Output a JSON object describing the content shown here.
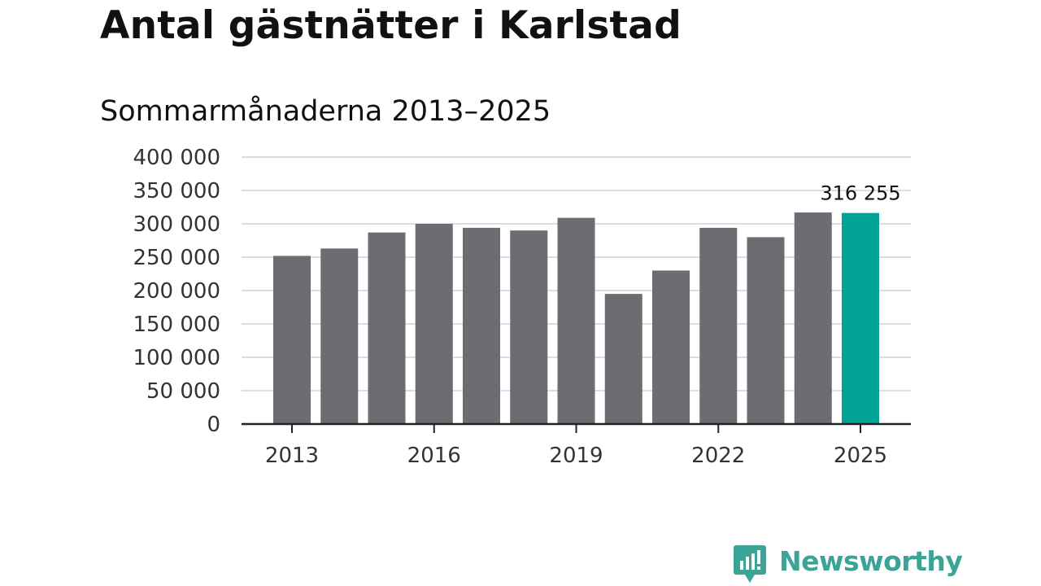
{
  "title": "Antal gästnätter i Karlstad",
  "subtitle": "Sommarmånaderna 2013–2025",
  "brand": {
    "name": "Newsworthy",
    "color": "#3aa597",
    "icon": "bar-chart-speech-bubble-icon"
  },
  "colors": {
    "bar": "#6d6c72",
    "highlight": "#00a196",
    "grid": "#dddddd",
    "axis": "#222222"
  },
  "chart_data": {
    "type": "bar",
    "categories": [
      "2013",
      "2014",
      "2015",
      "2016",
      "2017",
      "2018",
      "2019",
      "2020",
      "2021",
      "2022",
      "2023",
      "2024",
      "2025"
    ],
    "values": [
      252000,
      263000,
      287000,
      300000,
      294000,
      290000,
      309000,
      195000,
      230000,
      294000,
      280000,
      317000,
      316255
    ],
    "highlight_index": 12,
    "highlight_label": "316 255",
    "x_tick_labels": [
      "2013",
      "2016",
      "2019",
      "2022",
      "2025"
    ],
    "y_tick_values": [
      0,
      50000,
      100000,
      150000,
      200000,
      250000,
      300000,
      350000,
      400000
    ],
    "y_tick_labels": [
      "0",
      "50 000",
      "100 000",
      "150 000",
      "200 000",
      "250 000",
      "300 000",
      "350 000",
      "400 000"
    ],
    "ylim": [
      0,
      400000
    ],
    "grid": true,
    "legend": "none"
  }
}
